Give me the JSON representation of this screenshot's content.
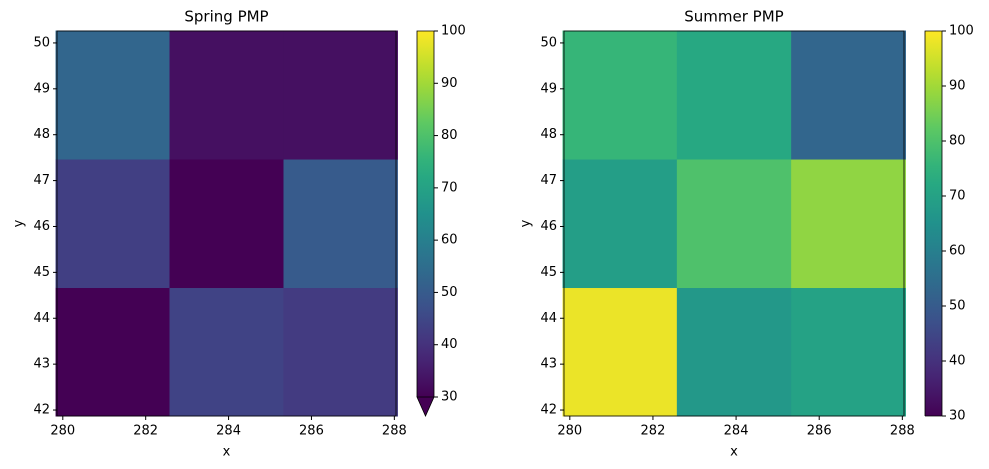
{
  "chart_data": [
    {
      "type": "heatmap",
      "title": "Spring PMP",
      "x_label": "x",
      "y_label": "y",
      "x": [
        281.2,
        283.95,
        286.7
      ],
      "y": [
        43.27,
        46.07,
        48.87
      ],
      "values": [
        [
          29,
          44,
          42
        ],
        [
          43,
          28,
          50
        ],
        [
          53,
          33,
          33
        ]
      ],
      "xlim": [
        279.86,
        288.04
      ],
      "ylim": [
        41.87,
        50.26
      ],
      "xticks": [
        280,
        282,
        284,
        286,
        288
      ],
      "yticks": [
        42,
        43,
        44,
        45,
        46,
        47,
        48,
        49,
        50
      ],
      "colormap": "viridis",
      "clim": [
        30,
        100
      ],
      "cticks": [
        30,
        40,
        50,
        60,
        70,
        80,
        90,
        100
      ],
      "extend": "min"
    },
    {
      "type": "heatmap",
      "title": "Summer PMP",
      "x_label": "x",
      "y_label": "y",
      "x": [
        281.2,
        283.95,
        286.7
      ],
      "y": [
        43.27,
        46.07,
        48.87
      ],
      "values": [
        [
          98,
          67,
          70
        ],
        [
          69,
          80,
          88
        ],
        [
          76,
          72,
          53
        ]
      ],
      "xlim": [
        279.86,
        288.04
      ],
      "ylim": [
        41.87,
        50.26
      ],
      "xticks": [
        280,
        282,
        284,
        286,
        288
      ],
      "yticks": [
        42,
        43,
        44,
        45,
        46,
        47,
        48,
        49,
        50
      ],
      "colormap": "viridis",
      "clim": [
        30,
        100
      ],
      "cticks": [
        30,
        40,
        50,
        60,
        70,
        80,
        90,
        100
      ],
      "extend": "neither"
    }
  ]
}
